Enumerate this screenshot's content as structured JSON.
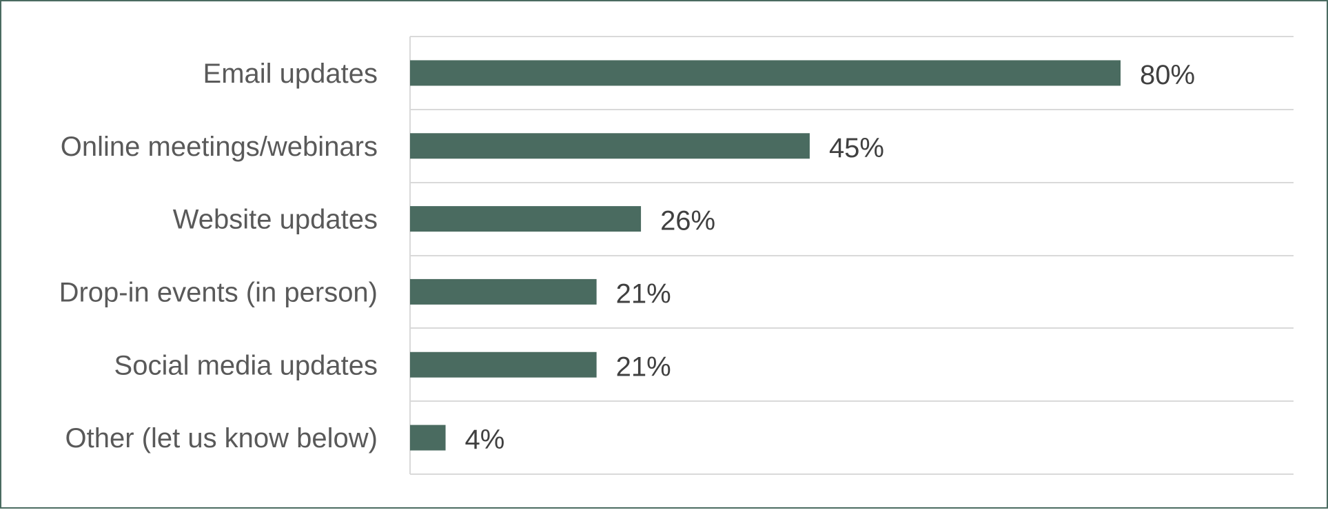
{
  "chart_data": {
    "type": "bar",
    "orientation": "horizontal",
    "categories": [
      "Email updates",
      "Online meetings/webinars",
      "Website updates",
      "Drop-in events (in person)",
      "Social media updates",
      "Other (let us know below)"
    ],
    "values": [
      80,
      45,
      26,
      21,
      21,
      4
    ],
    "value_labels": [
      "80%",
      "45%",
      "26%",
      "21%",
      "21%",
      "4%"
    ],
    "value_unit": "%",
    "xlim": [
      0,
      100
    ],
    "grid": "horizontal separators between categories",
    "legend": "none",
    "colors": {
      "bar": "#4a6b60",
      "grid": "#d9d9d9",
      "category_text": "#595959",
      "value_text": "#404040",
      "frame": "#4a6b60"
    }
  }
}
